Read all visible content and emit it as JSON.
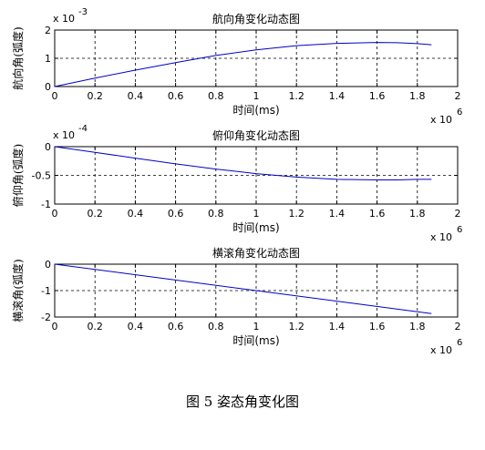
{
  "caption": "图 5  姿态角变化图",
  "chart_data": [
    {
      "type": "line",
      "title": "航向角变化动态图",
      "xlabel": "时间(ms)",
      "ylabel": "航向角(弧度)",
      "x_multiplier_label": "x 10",
      "x_multiplier_exp": "6",
      "y_multiplier_label": "x 10",
      "y_multiplier_exp": "-3",
      "xlim": [
        0,
        2
      ],
      "ylim": [
        0,
        2
      ],
      "xticks": [
        "0",
        "0.2",
        "0.4",
        "0.6",
        "0.8",
        "1",
        "1.2",
        "1.4",
        "1.6",
        "1.8",
        "2"
      ],
      "yticks": [
        "0",
        "1",
        "2"
      ],
      "grid": true,
      "line_color": "#0000c8",
      "series": [
        {
          "x": [
            0,
            0.2,
            0.4,
            0.6,
            0.8,
            1.0,
            1.2,
            1.4,
            1.6,
            1.7,
            1.8,
            1.87
          ],
          "y": [
            0,
            0.3,
            0.58,
            0.85,
            1.1,
            1.3,
            1.45,
            1.53,
            1.56,
            1.55,
            1.52,
            1.48
          ]
        }
      ]
    },
    {
      "type": "line",
      "title": "俯仰角变化动态图",
      "xlabel": "时间(ms)",
      "ylabel": "俯仰角(弧度)",
      "x_multiplier_label": "x 10",
      "x_multiplier_exp": "6",
      "y_multiplier_label": "x 10",
      "y_multiplier_exp": "-4",
      "xlim": [
        0,
        2
      ],
      "ylim": [
        -1,
        0
      ],
      "xticks": [
        "0",
        "0.2",
        "0.4",
        "0.6",
        "0.8",
        "1",
        "1.2",
        "1.4",
        "1.6",
        "1.8",
        "2"
      ],
      "yticks": [
        "0",
        "-0.5",
        "-1"
      ],
      "grid": true,
      "line_color": "#0000c8",
      "series": [
        {
          "x": [
            0,
            0.2,
            0.4,
            0.6,
            0.8,
            1.0,
            1.2,
            1.4,
            1.6,
            1.7,
            1.8,
            1.87
          ],
          "y": [
            0,
            -0.1,
            -0.2,
            -0.3,
            -0.39,
            -0.47,
            -0.53,
            -0.57,
            -0.58,
            -0.58,
            -0.57,
            -0.57
          ]
        }
      ]
    },
    {
      "type": "line",
      "title": "横滚角变化动态图",
      "xlabel": "时间(ms)",
      "ylabel": "横滚角(弧度)",
      "x_multiplier_label": "x 10",
      "x_multiplier_exp": "6",
      "xlim": [
        0,
        2
      ],
      "ylim": [
        -2,
        0
      ],
      "xticks": [
        "0",
        "0.2",
        "0.4",
        "0.6",
        "0.8",
        "1",
        "1.2",
        "1.4",
        "1.6",
        "1.8",
        "2"
      ],
      "yticks": [
        "0",
        "-1",
        "-2"
      ],
      "grid": true,
      "line_color": "#0000c8",
      "series": [
        {
          "x": [
            0,
            0.5,
            1.0,
            1.5,
            1.87
          ],
          "y": [
            0,
            -0.5,
            -1.0,
            -1.5,
            -1.87
          ]
        }
      ]
    }
  ]
}
